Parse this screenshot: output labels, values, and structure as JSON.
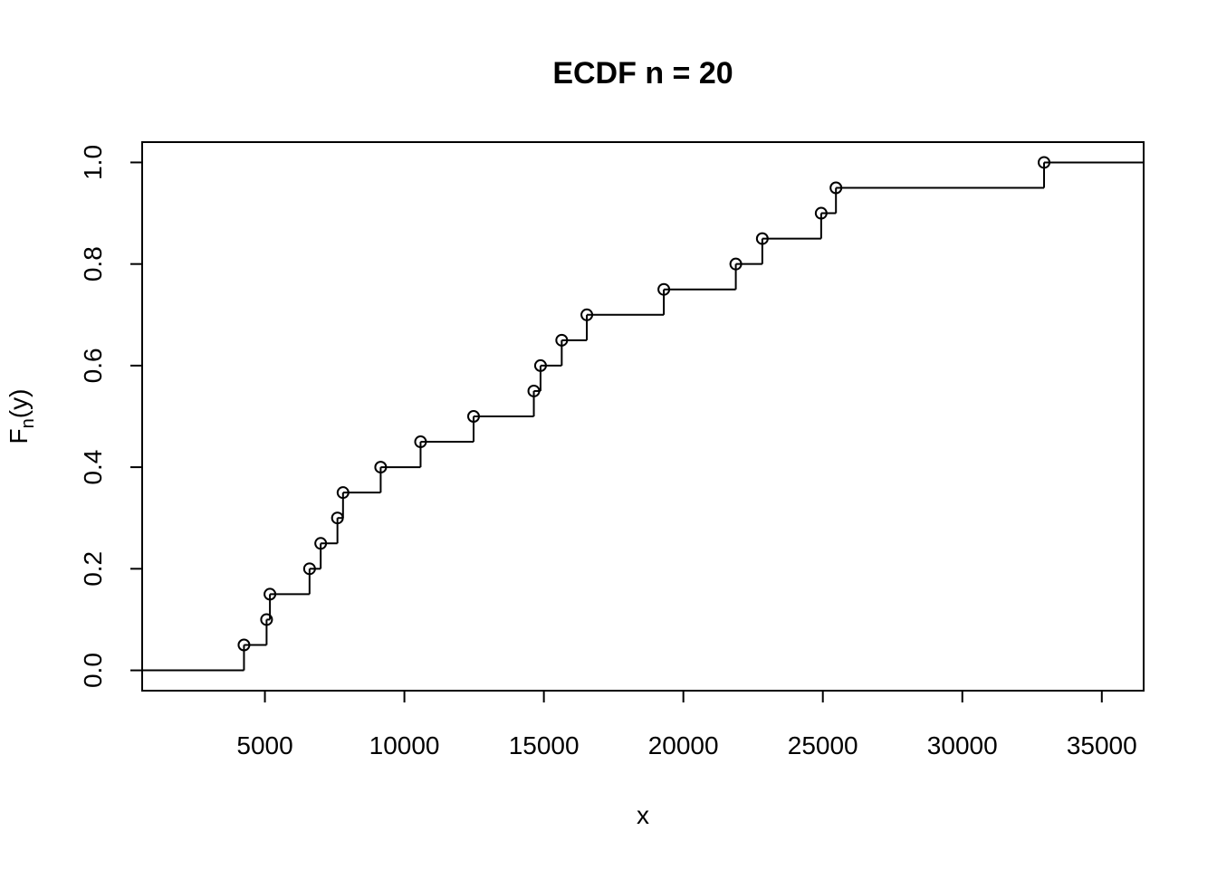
{
  "chart_data": {
    "type": "line",
    "title": "ECDF n = 20",
    "xlabel": "x",
    "ylabel": {
      "base": "F",
      "subscript": "n",
      "suffix": "(y)"
    },
    "xlim": [
      600,
      36500
    ],
    "ylim": [
      -0.04,
      1.04
    ],
    "xticks": [
      5000,
      10000,
      15000,
      20000,
      25000,
      30000,
      35000
    ],
    "xtick_labels": [
      "5000",
      "10000",
      "15000",
      "20000",
      "25000",
      "30000",
      "35000"
    ],
    "yticks": [
      0.0,
      0.2,
      0.4,
      0.6,
      0.8,
      1.0
    ],
    "ytick_labels": [
      "0.0",
      "0.2",
      "0.4",
      "0.6",
      "0.8",
      "1.0"
    ],
    "grid": false,
    "series": [
      {
        "x": [
          4250,
          5060,
          5180,
          6600,
          7000,
          7600,
          7800,
          9150,
          10580,
          12480,
          14640,
          14880,
          15640,
          16540,
          19300,
          21880,
          22830,
          24940,
          25470,
          32930
        ],
        "y": [
          0.05,
          0.1,
          0.15,
          0.2,
          0.25,
          0.3,
          0.35,
          0.4,
          0.45,
          0.5,
          0.55,
          0.6,
          0.65,
          0.7,
          0.75,
          0.8,
          0.85,
          0.9,
          0.95,
          1.0
        ]
      }
    ]
  }
}
